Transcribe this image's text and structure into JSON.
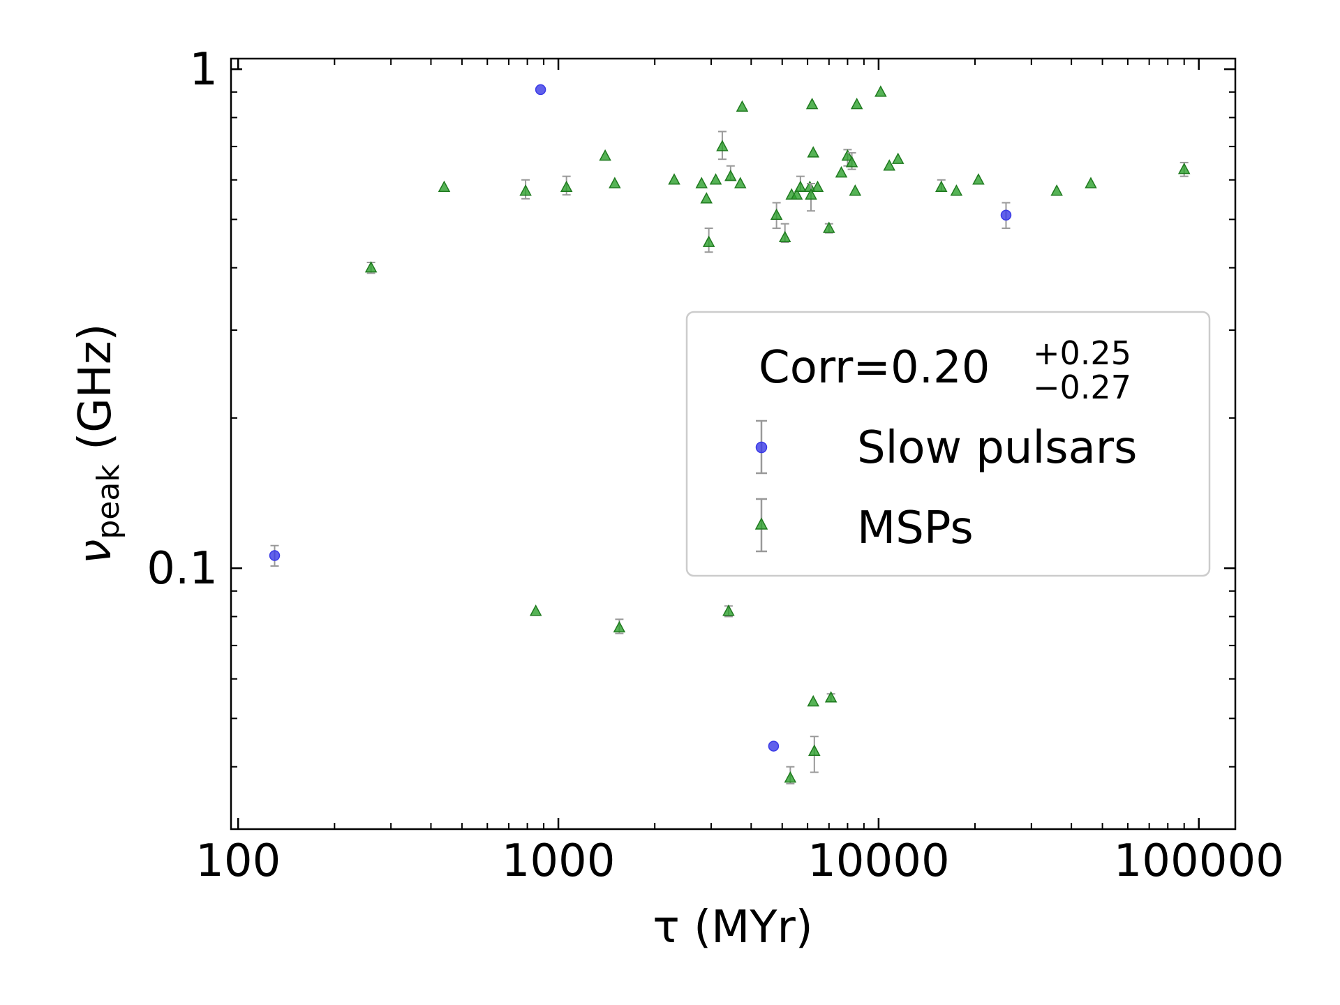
{
  "chart_data": {
    "type": "scatter",
    "xlabel": "τ (MYr)",
    "ylabel_main": "ν",
    "ylabel_sub": "peak",
    "ylabel_unit": " (GHz)",
    "xscale": "log",
    "yscale": "log",
    "xlim": [
      95,
      130000
    ],
    "ylim": [
      0.03,
      1.05
    ],
    "x_ticks": [
      {
        "value": 100,
        "label": "100"
      },
      {
        "value": 1000,
        "label": "1000"
      },
      {
        "value": 10000,
        "label": "10000"
      },
      {
        "value": 100000,
        "label": "100000"
      }
    ],
    "y_ticks": [
      {
        "value": 0.1,
        "label": "0.1"
      },
      {
        "value": 1,
        "label": "1"
      }
    ],
    "grid": false,
    "legend": {
      "placement": "center-right",
      "title_main": "Corr=0.20",
      "title_sup": "+0.25",
      "title_sub": "−0.27"
    },
    "series": [
      {
        "name": "Slow pulsars",
        "marker": "circle",
        "color": "#3a3ae6",
        "points": [
          {
            "x": 130,
            "y": 0.106,
            "lo": 0.101,
            "hi": 0.111
          },
          {
            "x": 880,
            "y": 0.91
          },
          {
            "x": 4700,
            "y": 0.044
          },
          {
            "x": 25000,
            "y": 0.51,
            "lo": 0.48,
            "hi": 0.54
          }
        ]
      },
      {
        "name": "MSPs",
        "marker": "triangle",
        "color": "#2ca02c",
        "points": [
          {
            "x": 260,
            "y": 0.4,
            "lo": 0.39,
            "hi": 0.41
          },
          {
            "x": 440,
            "y": 0.58
          },
          {
            "x": 790,
            "y": 0.57,
            "lo": 0.55,
            "hi": 0.6
          },
          {
            "x": 850,
            "y": 0.082
          },
          {
            "x": 1060,
            "y": 0.58,
            "lo": 0.56,
            "hi": 0.61
          },
          {
            "x": 1400,
            "y": 0.67
          },
          {
            "x": 1500,
            "y": 0.59
          },
          {
            "x": 1550,
            "y": 0.076,
            "lo": 0.074,
            "hi": 0.079
          },
          {
            "x": 2300,
            "y": 0.6
          },
          {
            "x": 2800,
            "y": 0.59
          },
          {
            "x": 2900,
            "y": 0.55
          },
          {
            "x": 2950,
            "y": 0.45,
            "lo": 0.43,
            "hi": 0.48
          },
          {
            "x": 3100,
            "y": 0.6
          },
          {
            "x": 3250,
            "y": 0.7,
            "lo": 0.66,
            "hi": 0.75
          },
          {
            "x": 3400,
            "y": 0.082,
            "lo": 0.08,
            "hi": 0.084
          },
          {
            "x": 3450,
            "y": 0.61,
            "lo": 0.6,
            "hi": 0.64
          },
          {
            "x": 3700,
            "y": 0.59
          },
          {
            "x": 3750,
            "y": 0.84
          },
          {
            "x": 4800,
            "y": 0.51,
            "lo": 0.48,
            "hi": 0.54
          },
          {
            "x": 5100,
            "y": 0.46,
            "lo": 0.45,
            "hi": 0.49
          },
          {
            "x": 5300,
            "y": 0.038,
            "lo": 0.037,
            "hi": 0.04
          },
          {
            "x": 5350,
            "y": 0.56
          },
          {
            "x": 5550,
            "y": 0.56
          },
          {
            "x": 5700,
            "y": 0.58,
            "lo": 0.57,
            "hi": 0.61
          },
          {
            "x": 6100,
            "y": 0.58
          },
          {
            "x": 6150,
            "y": 0.56,
            "lo": 0.52,
            "hi": 0.59
          },
          {
            "x": 6200,
            "y": 0.85
          },
          {
            "x": 6250,
            "y": 0.68
          },
          {
            "x": 6250,
            "y": 0.054
          },
          {
            "x": 6300,
            "y": 0.043,
            "lo": 0.039,
            "hi": 0.046
          },
          {
            "x": 6450,
            "y": 0.58
          },
          {
            "x": 7000,
            "y": 0.48,
            "lo": 0.47,
            "hi": 0.49
          },
          {
            "x": 7100,
            "y": 0.055,
            "lo": 0.054,
            "hi": 0.056
          },
          {
            "x": 7650,
            "y": 0.62
          },
          {
            "x": 8000,
            "y": 0.67,
            "lo": 0.64,
            "hi": 0.69
          },
          {
            "x": 8250,
            "y": 0.65,
            "lo": 0.63,
            "hi": 0.68
          },
          {
            "x": 8450,
            "y": 0.57
          },
          {
            "x": 8550,
            "y": 0.85
          },
          {
            "x": 10150,
            "y": 0.9
          },
          {
            "x": 10800,
            "y": 0.64
          },
          {
            "x": 11500,
            "y": 0.66
          },
          {
            "x": 15700,
            "y": 0.58,
            "lo": 0.57,
            "hi": 0.6
          },
          {
            "x": 17500,
            "y": 0.57
          },
          {
            "x": 20500,
            "y": 0.6
          },
          {
            "x": 36000,
            "y": 0.57
          },
          {
            "x": 46000,
            "y": 0.59
          },
          {
            "x": 90000,
            "y": 0.63,
            "lo": 0.61,
            "hi": 0.65
          }
        ]
      }
    ]
  }
}
